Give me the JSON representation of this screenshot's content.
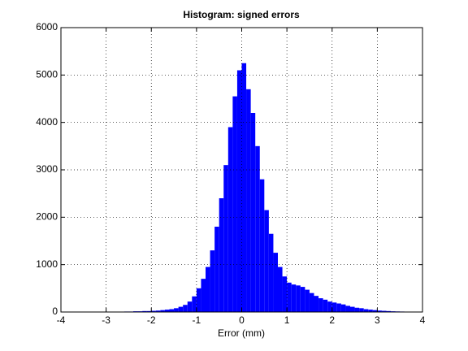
{
  "chart_data": {
    "type": "histogram",
    "title": "Histogram: signed errors",
    "x_label": "Error (mm)",
    "bins": [
      -2.6,
      -2.5,
      -2.4,
      -2.3,
      -2.2,
      -2.1,
      -2.0,
      -1.9,
      -1.8,
      -1.7,
      -1.6,
      -1.5,
      -1.4,
      -1.3,
      -1.2,
      -1.1,
      -1.0,
      -0.9,
      -0.8,
      -0.7,
      -0.6,
      -0.5,
      -0.4,
      -0.3,
      -0.2,
      -0.1,
      0.0,
      0.1,
      0.2,
      0.3,
      0.4,
      0.5,
      0.6,
      0.7,
      0.8,
      0.9,
      1.0,
      1.1,
      1.2,
      1.3,
      1.4,
      1.5,
      1.6,
      1.7,
      1.8,
      1.9,
      2.0,
      2.1,
      2.2,
      2.3,
      2.4,
      2.5,
      2.6,
      2.7,
      2.8,
      2.9,
      3.0,
      3.1,
      3.2,
      3.3,
      3.4,
      3.5,
      3.6,
      3.7,
      3.8
    ],
    "values": [
      10,
      10,
      15,
      15,
      20,
      20,
      25,
      30,
      40,
      50,
      60,
      80,
      110,
      150,
      220,
      330,
      500,
      700,
      950,
      1300,
      1800,
      2400,
      3100,
      3900,
      4550,
      5100,
      5250,
      4700,
      4200,
      3500,
      2800,
      2150,
      1650,
      1250,
      950,
      750,
      620,
      580,
      560,
      530,
      470,
      400,
      340,
      290,
      260,
      220,
      200,
      180,
      160,
      130,
      110,
      90,
      80,
      60,
      50,
      40,
      30,
      25,
      20,
      15,
      12,
      10,
      8,
      5
    ],
    "color": "#0000ff",
    "xlim": [
      -4,
      4
    ],
    "xticks": [
      -4,
      -3,
      -2,
      -1,
      0,
      1,
      2,
      3,
      4
    ],
    "ylim": [
      0,
      6000
    ],
    "yticks": [
      0,
      1000,
      2000,
      3000,
      4000,
      5000,
      6000
    ],
    "grid": true
  }
}
